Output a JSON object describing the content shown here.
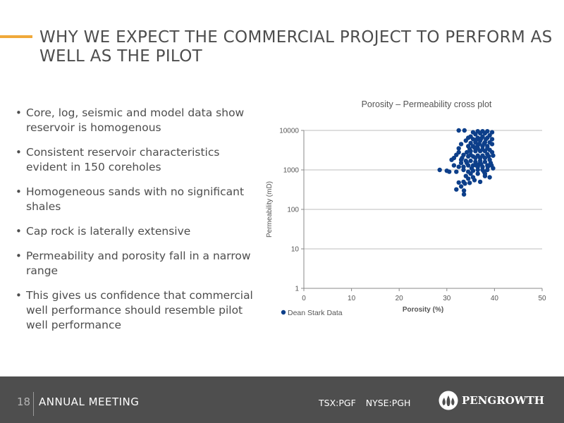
{
  "slide": {
    "title": "WHY WE EXPECT THE COMMERCIAL PROJECT TO PERFORM AS WELL AS THE PILOT",
    "bullets": [
      "Core, log, seismic and model data show reservoir is homogenous",
      "Consistent reservoir characteristics evident in 150 coreholes",
      "Homogeneous sands with no significant shales",
      "Cap rock is laterally extensive",
      "Permeability and porosity fall in a narrow range",
      "This gives us confidence that commercial well performance should resemble pilot well performance"
    ],
    "bullet_glyph": "•"
  },
  "chart_data": {
    "type": "scatter",
    "title": "Porosity – Permeability cross plot",
    "xlabel": "Porosity (%)",
    "ylabel": "Permeability (mD)",
    "xlim": [
      0,
      50
    ],
    "ylim": [
      1,
      10000
    ],
    "y_scale": "log",
    "x_ticks": [
      "0",
      "10",
      "20",
      "30",
      "40",
      "50"
    ],
    "y_ticks": [
      "1",
      "10",
      "100",
      "1000",
      "10000"
    ],
    "grid": "horizontal",
    "legend_position": "bottom-left",
    "series": [
      {
        "name": "Dean Stark Data",
        "color": "#0d3f8a",
        "points": [
          [
            32.5,
            10000
          ],
          [
            33.7,
            10000
          ],
          [
            32.5,
            3500
          ],
          [
            33.0,
            4500
          ],
          [
            34.0,
            5500
          ],
          [
            34.5,
            6500
          ],
          [
            35.0,
            7000
          ],
          [
            36.5,
            9500
          ],
          [
            37.5,
            9500
          ],
          [
            38.5,
            9500
          ],
          [
            39.5,
            9000
          ],
          [
            38.0,
            8500
          ],
          [
            39.0,
            7500
          ],
          [
            38.5,
            6500
          ],
          [
            37.5,
            7000
          ],
          [
            36.5,
            6500
          ],
          [
            35.5,
            6000
          ],
          [
            36.0,
            5000
          ],
          [
            37.0,
            5500
          ],
          [
            38.0,
            5000
          ],
          [
            39.0,
            5000
          ],
          [
            39.5,
            4500
          ],
          [
            38.5,
            4000
          ],
          [
            37.5,
            4000
          ],
          [
            36.5,
            4200
          ],
          [
            35.5,
            4000
          ],
          [
            34.5,
            4000
          ],
          [
            35.0,
            3000
          ],
          [
            36.0,
            3000
          ],
          [
            37.0,
            3000
          ],
          [
            38.0,
            3000
          ],
          [
            39.0,
            3200
          ],
          [
            39.5,
            2800
          ],
          [
            38.5,
            2500
          ],
          [
            37.5,
            2300
          ],
          [
            36.5,
            2300
          ],
          [
            35.5,
            2200
          ],
          [
            34.5,
            2200
          ],
          [
            33.5,
            2400
          ],
          [
            32.0,
            2400
          ],
          [
            31.5,
            2000
          ],
          [
            33.0,
            1800
          ],
          [
            34.0,
            1700
          ],
          [
            35.0,
            1700
          ],
          [
            36.0,
            1600
          ],
          [
            37.0,
            1700
          ],
          [
            38.0,
            1600
          ],
          [
            39.0,
            1800
          ],
          [
            39.7,
            2300
          ],
          [
            38.5,
            1300
          ],
          [
            37.5,
            1200
          ],
          [
            36.5,
            1200
          ],
          [
            35.5,
            1300
          ],
          [
            34.5,
            1300
          ],
          [
            33.5,
            1200
          ],
          [
            32.5,
            1200
          ],
          [
            31.5,
            1300
          ],
          [
            33.5,
            1000
          ],
          [
            34.5,
            900
          ],
          [
            35.5,
            950
          ],
          [
            36.5,
            1000
          ],
          [
            37.5,
            1000
          ],
          [
            38.5,
            1000
          ],
          [
            39.7,
            1100
          ],
          [
            38.0,
            800
          ],
          [
            36.5,
            800
          ],
          [
            35.0,
            800
          ],
          [
            34.0,
            700
          ],
          [
            38.0,
            700
          ],
          [
            35.5,
            650
          ],
          [
            34.5,
            600
          ],
          [
            33.5,
            500
          ],
          [
            33.8,
            450
          ],
          [
            34.8,
            470
          ],
          [
            32.5,
            480
          ],
          [
            33.0,
            380
          ],
          [
            32.0,
            320
          ],
          [
            33.6,
            300
          ],
          [
            33.6,
            240
          ],
          [
            37.0,
            500
          ],
          [
            28.5,
            1000
          ],
          [
            30.0,
            950
          ],
          [
            30.5,
            900
          ],
          [
            31.0,
            1800
          ],
          [
            36.0,
            8000
          ],
          [
            35.5,
            9000
          ],
          [
            37.0,
            8500
          ],
          [
            39.5,
            6000
          ],
          [
            36.5,
            3500
          ],
          [
            37.5,
            3300
          ],
          [
            38.5,
            3500
          ],
          [
            35.0,
            4800
          ],
          [
            34.2,
            2800
          ],
          [
            33.2,
            2000
          ],
          [
            32.5,
            2800
          ],
          [
            37.0,
            2000
          ],
          [
            38.0,
            2000
          ],
          [
            36.0,
            2000
          ],
          [
            35.0,
            2400
          ],
          [
            36.2,
            5800
          ],
          [
            37.2,
            6200
          ],
          [
            38.2,
            6000
          ],
          [
            37.8,
            4600
          ],
          [
            36.8,
            4600
          ],
          [
            35.8,
            3700
          ],
          [
            34.8,
            3400
          ],
          [
            38.8,
            2200
          ],
          [
            39.2,
            1500
          ],
          [
            36.8,
            1400
          ],
          [
            34.2,
            1500
          ],
          [
            33.0,
            1500
          ],
          [
            35.2,
            1100
          ],
          [
            36.2,
            1300
          ],
          [
            37.2,
            1400
          ],
          [
            38.6,
            1200
          ],
          [
            39.4,
            1300
          ],
          [
            32.0,
            900
          ],
          [
            37.8,
            900
          ],
          [
            39.0,
            650
          ],
          [
            35.8,
            550
          ]
        ]
      }
    ]
  },
  "footer": {
    "page_number": "18",
    "event_label": "ANNUAL MEETING",
    "tickers": [
      "TSX:PGF",
      "NYSE:PGH"
    ],
    "brand_name": "PENGROWTH"
  },
  "icons": {
    "logo": "pengrowth-droplets-logo-icon"
  },
  "colors": {
    "accent": "#f0a93a",
    "title_text": "#4d4d4d",
    "footer_bg": "#4e4e4e",
    "marker": "#0d3f8a",
    "grid": "#bdbdbd"
  }
}
